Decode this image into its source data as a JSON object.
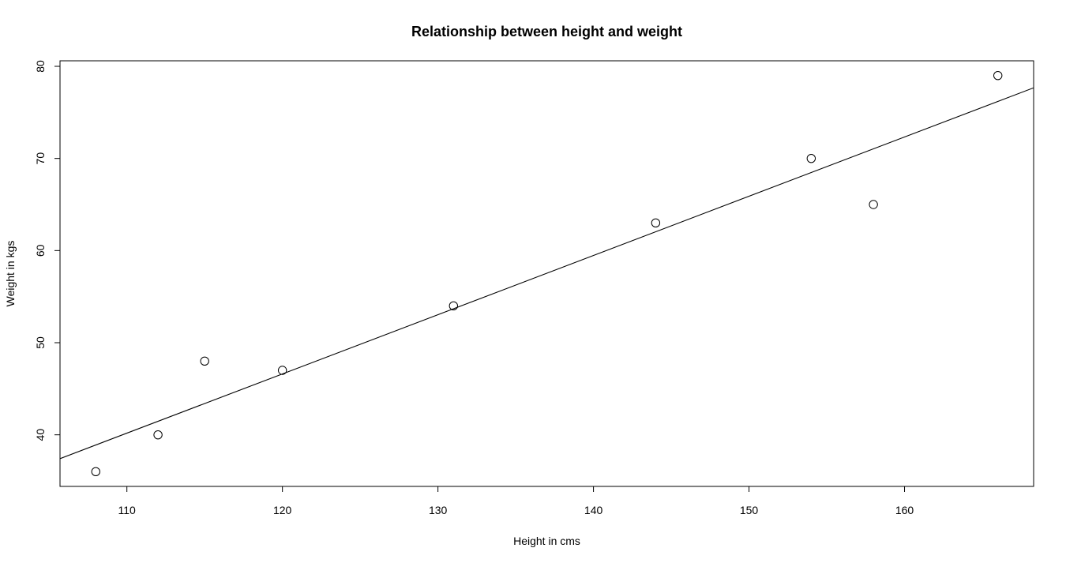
{
  "chart_data": {
    "type": "scatter",
    "title": "Relationship between height and weight",
    "xlabel": "Height in cms",
    "ylabel": "Weight in kgs",
    "xlim": [
      105.7,
      168.3
    ],
    "ylim": [
      34.4,
      80.6
    ],
    "x_ticks": [
      110,
      120,
      130,
      140,
      150,
      160
    ],
    "y_ticks": [
      40,
      50,
      60,
      70,
      80
    ],
    "grid": false,
    "legend": "none",
    "series": [
      {
        "x": [
          108,
          112,
          115,
          120,
          131,
          144,
          154,
          158,
          166
        ],
        "y": [
          36,
          40,
          48,
          47,
          54,
          63,
          70,
          65,
          79
        ],
        "marker": "open-circle",
        "color": "#000000"
      }
    ],
    "regression_line": {
      "slope": 0.643,
      "intercept": -30.55,
      "color": "#000000"
    }
  }
}
